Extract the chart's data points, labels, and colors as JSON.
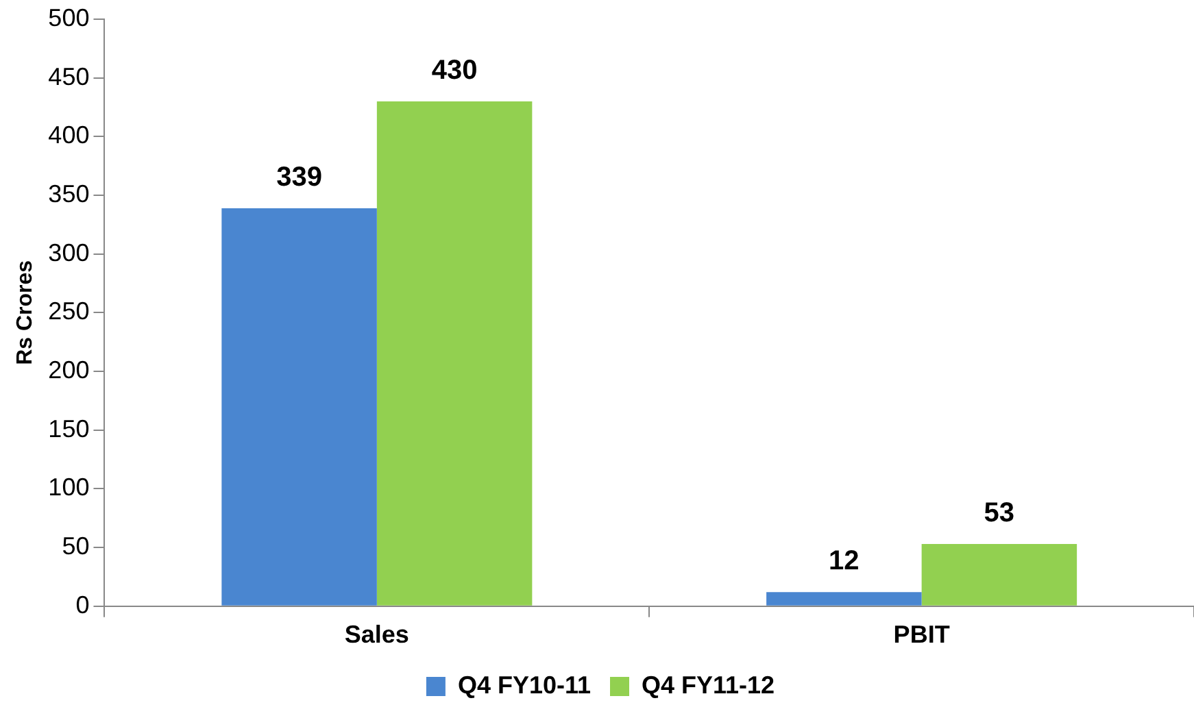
{
  "chart_data": {
    "type": "bar",
    "ylabel": "Rs Crores",
    "categories": [
      "Sales",
      "PBIT"
    ],
    "series": [
      {
        "name": "Q4 FY10-11",
        "color": "#4a86d0",
        "values": [
          339,
          12
        ]
      },
      {
        "name": "Q4 FY11-12",
        "color": "#92d050",
        "values": [
          430,
          53
        ]
      }
    ],
    "ylim": [
      0,
      500
    ],
    "yticks": [
      0,
      50,
      100,
      150,
      200,
      250,
      300,
      350,
      400,
      450,
      500
    ],
    "grid": false,
    "legend": "bottom",
    "data_labels": true
  }
}
